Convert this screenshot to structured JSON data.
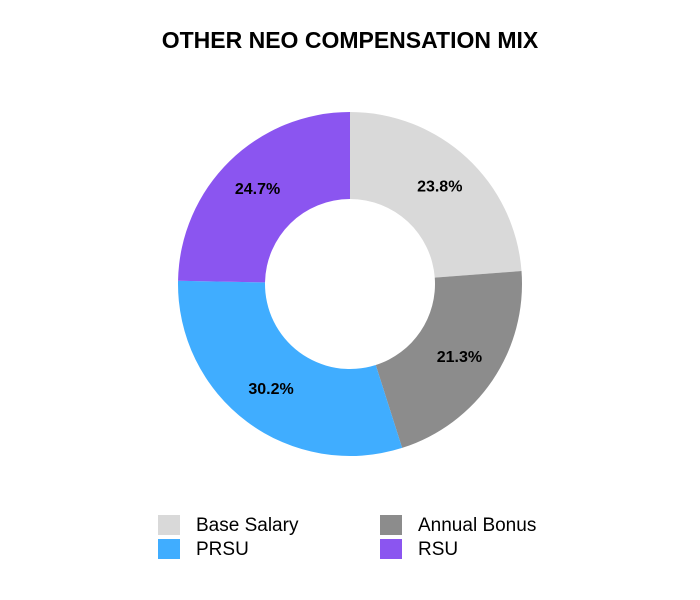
{
  "chart_data": {
    "type": "pie",
    "title": "OTHER NEO COMPENSATION MIX",
    "categories": [
      "Base Salary",
      "Annual Bonus",
      "PRSU",
      "RSU"
    ],
    "values": [
      23.8,
      21.3,
      30.2,
      24.7
    ],
    "value_labels": [
      "23.8%",
      "21.3%",
      "30.2%",
      "24.7%"
    ],
    "colors": [
      "#d9d9d9",
      "#8c8c8c",
      "#40adff",
      "#8b55f0"
    ],
    "donut": true
  }
}
